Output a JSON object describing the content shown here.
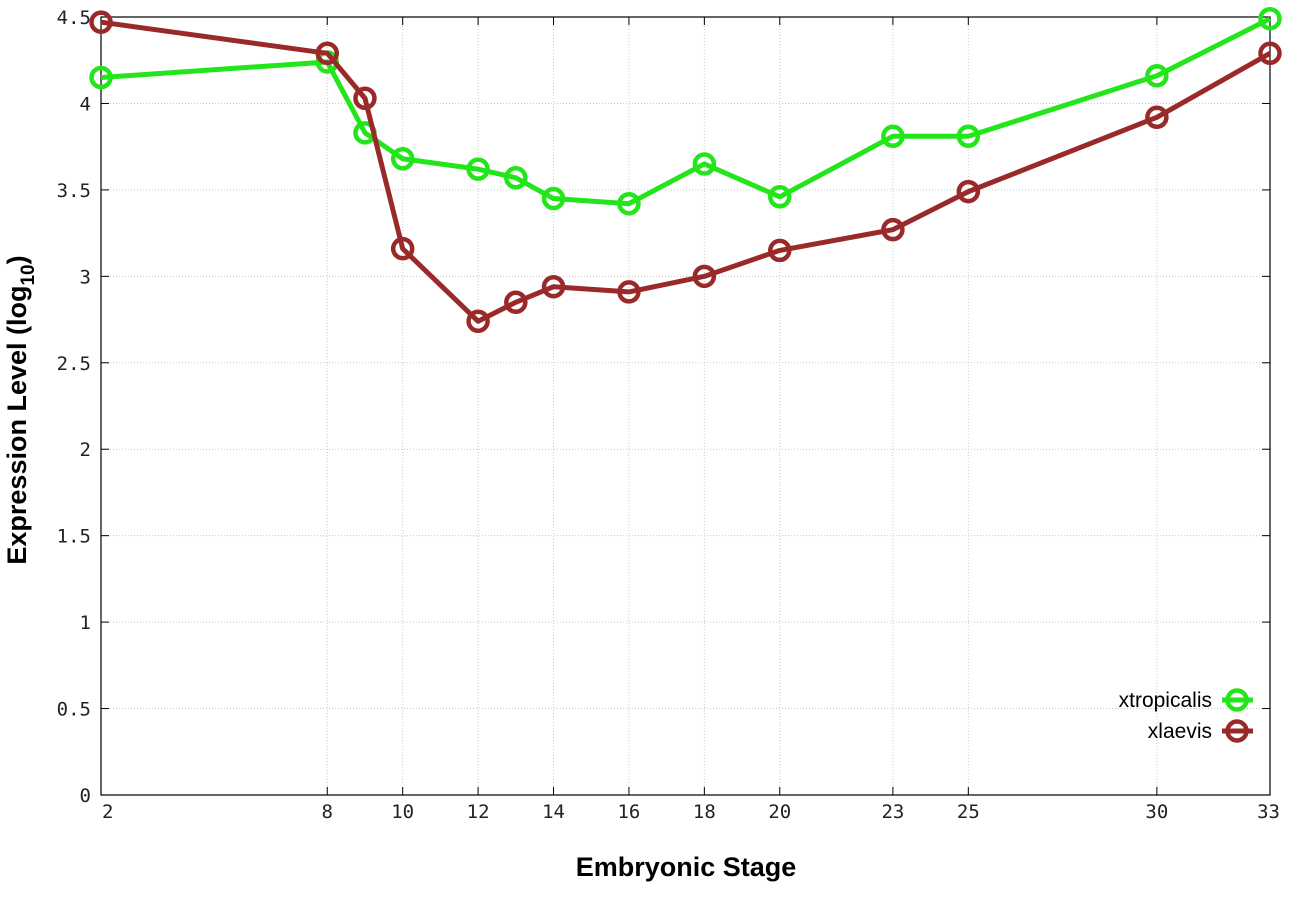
{
  "chart_data": {
    "type": "line",
    "title": "",
    "xlabel": "Embryonic Stage",
    "ylabel": "Expression Level (log10)",
    "ylabel_main": "Expression Level (log",
    "ylabel_sub": "10",
    "ylabel_close": ")",
    "xlim": [
      2,
      33
    ],
    "ylim": [
      0,
      4.5
    ],
    "x_ticks": [
      2,
      8,
      10,
      12,
      14,
      16,
      18,
      20,
      23,
      25,
      30,
      33
    ],
    "y_ticks": [
      0,
      0.5,
      1,
      1.5,
      2,
      2.5,
      3,
      3.5,
      4,
      4.5
    ],
    "y_tick_labels": [
      "0",
      "0.5",
      "1",
      "1.5",
      "2",
      "2.5",
      "3",
      "3.5",
      "4",
      "4.5"
    ],
    "grid": true,
    "legend_position": "bottom-right",
    "x": [
      2,
      8,
      9,
      10,
      12,
      13,
      14,
      16,
      18,
      20,
      23,
      25,
      30,
      33
    ],
    "series": [
      {
        "name": "xtropicalis",
        "color": "#22e51a",
        "values": [
          4.15,
          4.24,
          3.83,
          3.68,
          3.62,
          3.57,
          3.45,
          3.42,
          3.65,
          3.46,
          3.81,
          3.81,
          4.16,
          4.49
        ]
      },
      {
        "name": "xlaevis",
        "color": "#9a2a2a",
        "values": [
          4.47,
          4.29,
          4.03,
          3.16,
          2.74,
          2.85,
          2.94,
          2.91,
          3.0,
          3.15,
          3.27,
          3.49,
          3.92,
          4.29
        ]
      }
    ]
  }
}
